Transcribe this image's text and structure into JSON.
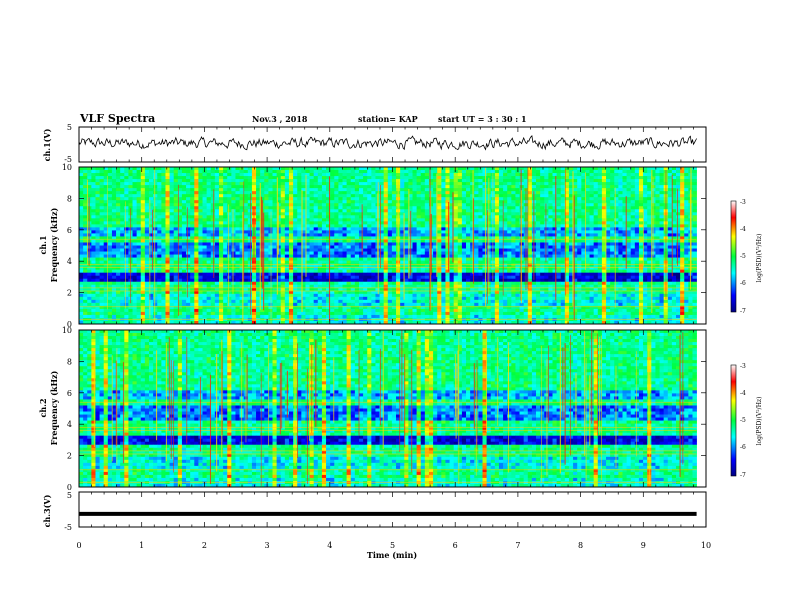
{
  "header": {
    "title": "VLF Spectra",
    "date": "Nov.3  , 2018",
    "station": "station= KAP",
    "start": "start  UT  =   3  : 30 : 1"
  },
  "chart_data": [
    {
      "type": "line",
      "ylabel": "ch.1(V)",
      "ylim": [
        -5,
        5
      ],
      "yticks": [
        "5",
        "-5"
      ],
      "xlim": [
        0,
        10
      ],
      "description_series": "noisy waveform oscillating roughly between -2 and 3 V"
    },
    {
      "type": "heatmap",
      "ylabel": "ch.1\nFrequency  (kHz)",
      "ylabel_lines": [
        "ch.1",
        "Frequency  (kHz)"
      ],
      "ylim": [
        0,
        10
      ],
      "yticks": [
        "0",
        "2",
        "4",
        "6",
        "8",
        "10"
      ],
      "xlim": [
        0,
        10
      ],
      "colorbar": {
        "label": "log(PSD)(V²/Hz)",
        "range": [
          -7,
          -3
        ],
        "ticks": [
          "-3",
          "-4",
          "-5",
          "-6",
          "-7"
        ]
      }
    },
    {
      "type": "heatmap",
      "ylabel": "ch.2\nFrequency  (kHz)",
      "ylabel_lines": [
        "ch.2",
        "Frequency  (kHz)"
      ],
      "ylim": [
        0,
        10
      ],
      "yticks": [
        "0",
        "2",
        "4",
        "6",
        "8",
        "10"
      ],
      "xlim": [
        0,
        10
      ],
      "colorbar": {
        "label": "log(PSD)(V²/Hz)",
        "range": [
          -7,
          -3
        ],
        "ticks": [
          "-3",
          "-4",
          "-5",
          "-6",
          "-7"
        ]
      }
    },
    {
      "type": "line",
      "ylabel": "ch.3(V)",
      "ylim": [
        -5,
        5
      ],
      "yticks": [
        "5",
        "-5"
      ],
      "xlim": [
        0,
        10
      ],
      "xlabel": "Time  (min)",
      "xticks": [
        "0",
        "1",
        "2",
        "3",
        "4",
        "5",
        "6",
        "7",
        "8",
        "9",
        "10"
      ],
      "series": [
        {
          "x": [
            0,
            9.85
          ],
          "y": [
            -1.5,
            -1.5
          ]
        }
      ]
    }
  ],
  "colors": {
    "colormap": [
      "#000080",
      "#0000ff",
      "#00ffff",
      "#00ff40",
      "#ffff00",
      "#ff0000",
      "#ffffff"
    ]
  }
}
